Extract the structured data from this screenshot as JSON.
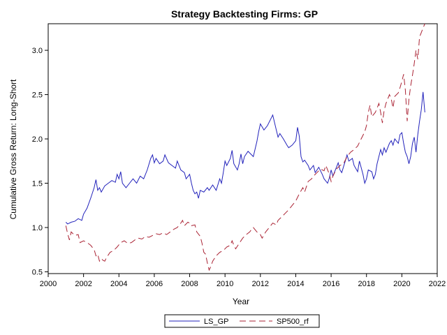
{
  "chart_data": {
    "type": "line",
    "title": "Strategy Backtesting  Firms: GP",
    "xlabel": "Year",
    "ylabel": "Cumulative Gross Return: Long-Short",
    "xlim": [
      2000,
      2022
    ],
    "ylim": [
      0.48,
      3.3
    ],
    "xticks": [
      2000,
      2002,
      2004,
      2006,
      2008,
      2010,
      2012,
      2014,
      2016,
      2018,
      2020,
      2022
    ],
    "yticks": [
      0.5,
      1.0,
      1.5,
      2.0,
      2.5,
      3.0
    ],
    "ytick_labels": [
      "0.5",
      "1.0",
      "1.5",
      "2.0",
      "2.5",
      "3.0"
    ],
    "grid": false,
    "legend": "bottom",
    "series": [
      {
        "name": "LS_GP",
        "color": "#2222bb",
        "style": "solid",
        "points": [
          [
            2001.0,
            1.06
          ],
          [
            2001.1,
            1.04
          ],
          [
            2001.3,
            1.06
          ],
          [
            2001.5,
            1.07
          ],
          [
            2001.7,
            1.1
          ],
          [
            2001.9,
            1.08
          ],
          [
            2002.0,
            1.15
          ],
          [
            2002.2,
            1.22
          ],
          [
            2002.4,
            1.33
          ],
          [
            2002.6,
            1.45
          ],
          [
            2002.7,
            1.54
          ],
          [
            2002.8,
            1.42
          ],
          [
            2002.9,
            1.45
          ],
          [
            2003.0,
            1.4
          ],
          [
            2003.2,
            1.47
          ],
          [
            2003.4,
            1.5
          ],
          [
            2003.6,
            1.53
          ],
          [
            2003.8,
            1.51
          ],
          [
            2003.9,
            1.6
          ],
          [
            2004.0,
            1.55
          ],
          [
            2004.1,
            1.63
          ],
          [
            2004.2,
            1.5
          ],
          [
            2004.4,
            1.45
          ],
          [
            2004.6,
            1.5
          ],
          [
            2004.8,
            1.55
          ],
          [
            2005.0,
            1.5
          ],
          [
            2005.2,
            1.58
          ],
          [
            2005.4,
            1.55
          ],
          [
            2005.6,
            1.65
          ],
          [
            2005.8,
            1.78
          ],
          [
            2005.9,
            1.82
          ],
          [
            2006.0,
            1.73
          ],
          [
            2006.1,
            1.78
          ],
          [
            2006.3,
            1.72
          ],
          [
            2006.5,
            1.75
          ],
          [
            2006.6,
            1.82
          ],
          [
            2006.8,
            1.73
          ],
          [
            2007.0,
            1.7
          ],
          [
            2007.2,
            1.67
          ],
          [
            2007.3,
            1.75
          ],
          [
            2007.5,
            1.65
          ],
          [
            2007.7,
            1.62
          ],
          [
            2007.8,
            1.55
          ],
          [
            2008.0,
            1.6
          ],
          [
            2008.1,
            1.5
          ],
          [
            2008.2,
            1.42
          ],
          [
            2008.3,
            1.38
          ],
          [
            2008.4,
            1.4
          ],
          [
            2008.5,
            1.33
          ],
          [
            2008.6,
            1.42
          ],
          [
            2008.8,
            1.4
          ],
          [
            2009.0,
            1.45
          ],
          [
            2009.1,
            1.42
          ],
          [
            2009.3,
            1.48
          ],
          [
            2009.5,
            1.42
          ],
          [
            2009.7,
            1.55
          ],
          [
            2009.8,
            1.5
          ],
          [
            2009.9,
            1.62
          ],
          [
            2010.0,
            1.75
          ],
          [
            2010.1,
            1.7
          ],
          [
            2010.3,
            1.78
          ],
          [
            2010.4,
            1.87
          ],
          [
            2010.5,
            1.72
          ],
          [
            2010.7,
            1.65
          ],
          [
            2010.8,
            1.72
          ],
          [
            2010.9,
            1.83
          ],
          [
            2011.0,
            1.72
          ],
          [
            2011.1,
            1.8
          ],
          [
            2011.3,
            1.86
          ],
          [
            2011.5,
            1.82
          ],
          [
            2011.6,
            1.8
          ],
          [
            2011.8,
            1.97
          ],
          [
            2011.9,
            2.08
          ],
          [
            2012.0,
            2.17
          ],
          [
            2012.2,
            2.1
          ],
          [
            2012.4,
            2.15
          ],
          [
            2012.6,
            2.23
          ],
          [
            2012.7,
            2.27
          ],
          [
            2012.9,
            2.1
          ],
          [
            2013.0,
            2.02
          ],
          [
            2013.1,
            2.06
          ],
          [
            2013.3,
            2.0
          ],
          [
            2013.5,
            1.93
          ],
          [
            2013.6,
            1.9
          ],
          [
            2013.8,
            1.93
          ],
          [
            2014.0,
            1.98
          ],
          [
            2014.1,
            2.13
          ],
          [
            2014.2,
            2.03
          ],
          [
            2014.3,
            1.8
          ],
          [
            2014.4,
            1.74
          ],
          [
            2014.5,
            1.76
          ],
          [
            2014.7,
            1.7
          ],
          [
            2014.8,
            1.65
          ],
          [
            2015.0,
            1.7
          ],
          [
            2015.1,
            1.62
          ],
          [
            2015.3,
            1.68
          ],
          [
            2015.5,
            1.6
          ],
          [
            2015.6,
            1.55
          ],
          [
            2015.8,
            1.5
          ],
          [
            2015.9,
            1.56
          ],
          [
            2016.0,
            1.65
          ],
          [
            2016.1,
            1.58
          ],
          [
            2016.3,
            1.68
          ],
          [
            2016.4,
            1.73
          ],
          [
            2016.5,
            1.65
          ],
          [
            2016.6,
            1.62
          ],
          [
            2016.8,
            1.75
          ],
          [
            2016.9,
            1.82
          ],
          [
            2017.0,
            1.75
          ],
          [
            2017.2,
            1.78
          ],
          [
            2017.3,
            1.7
          ],
          [
            2017.5,
            1.63
          ],
          [
            2017.6,
            1.75
          ],
          [
            2017.8,
            1.6
          ],
          [
            2017.9,
            1.5
          ],
          [
            2018.0,
            1.55
          ],
          [
            2018.1,
            1.65
          ],
          [
            2018.3,
            1.63
          ],
          [
            2018.4,
            1.55
          ],
          [
            2018.5,
            1.6
          ],
          [
            2018.6,
            1.72
          ],
          [
            2018.8,
            1.88
          ],
          [
            2018.9,
            1.82
          ],
          [
            2019.0,
            1.9
          ],
          [
            2019.1,
            1.85
          ],
          [
            2019.3,
            1.95
          ],
          [
            2019.4,
            1.98
          ],
          [
            2019.5,
            1.93
          ],
          [
            2019.6,
            2.0
          ],
          [
            2019.8,
            1.95
          ],
          [
            2019.9,
            2.05
          ],
          [
            2020.0,
            2.07
          ],
          [
            2020.1,
            1.95
          ],
          [
            2020.2,
            1.85
          ],
          [
            2020.3,
            1.8
          ],
          [
            2020.4,
            1.72
          ],
          [
            2020.5,
            1.8
          ],
          [
            2020.6,
            1.95
          ],
          [
            2020.7,
            2.02
          ],
          [
            2020.8,
            1.85
          ],
          [
            2020.9,
            2.05
          ],
          [
            2021.0,
            2.2
          ],
          [
            2021.1,
            2.33
          ],
          [
            2021.2,
            2.53
          ],
          [
            2021.3,
            2.3
          ]
        ]
      },
      {
        "name": "SP500_rf",
        "color": "#aa2233",
        "style": "dashed",
        "points": [
          [
            2001.0,
            1.02
          ],
          [
            2001.1,
            0.93
          ],
          [
            2001.2,
            0.86
          ],
          [
            2001.3,
            0.95
          ],
          [
            2001.5,
            0.91
          ],
          [
            2001.7,
            0.92
          ],
          [
            2001.8,
            0.83
          ],
          [
            2002.0,
            0.85
          ],
          [
            2002.2,
            0.83
          ],
          [
            2002.4,
            0.8
          ],
          [
            2002.6,
            0.75
          ],
          [
            2002.7,
            0.68
          ],
          [
            2002.8,
            0.7
          ],
          [
            2002.9,
            0.62
          ],
          [
            2003.0,
            0.65
          ],
          [
            2003.1,
            0.63
          ],
          [
            2003.2,
            0.62
          ],
          [
            2003.3,
            0.66
          ],
          [
            2003.5,
            0.72
          ],
          [
            2003.7,
            0.74
          ],
          [
            2003.9,
            0.78
          ],
          [
            2004.1,
            0.83
          ],
          [
            2004.3,
            0.85
          ],
          [
            2004.5,
            0.82
          ],
          [
            2004.7,
            0.83
          ],
          [
            2004.9,
            0.86
          ],
          [
            2005.1,
            0.88
          ],
          [
            2005.3,
            0.87
          ],
          [
            2005.5,
            0.9
          ],
          [
            2005.7,
            0.89
          ],
          [
            2005.9,
            0.91
          ],
          [
            2006.1,
            0.93
          ],
          [
            2006.3,
            0.92
          ],
          [
            2006.5,
            0.94
          ],
          [
            2006.7,
            0.92
          ],
          [
            2006.9,
            0.95
          ],
          [
            2007.1,
            0.98
          ],
          [
            2007.3,
            1.0
          ],
          [
            2007.5,
            1.05
          ],
          [
            2007.6,
            1.08
          ],
          [
            2007.7,
            1.02
          ],
          [
            2007.9,
            1.06
          ],
          [
            2008.0,
            1.05
          ],
          [
            2008.1,
            1.02
          ],
          [
            2008.3,
            1.03
          ],
          [
            2008.4,
            0.95
          ],
          [
            2008.6,
            0.9
          ],
          [
            2008.7,
            0.82
          ],
          [
            2008.8,
            0.72
          ],
          [
            2008.9,
            0.7
          ],
          [
            2009.0,
            0.6
          ],
          [
            2009.1,
            0.52
          ],
          [
            2009.2,
            0.56
          ],
          [
            2009.3,
            0.62
          ],
          [
            2009.5,
            0.68
          ],
          [
            2009.7,
            0.72
          ],
          [
            2009.9,
            0.74
          ],
          [
            2010.1,
            0.78
          ],
          [
            2010.3,
            0.8
          ],
          [
            2010.4,
            0.85
          ],
          [
            2010.5,
            0.8
          ],
          [
            2010.6,
            0.76
          ],
          [
            2010.8,
            0.82
          ],
          [
            2011.0,
            0.88
          ],
          [
            2011.2,
            0.92
          ],
          [
            2011.4,
            0.95
          ],
          [
            2011.5,
            0.98
          ],
          [
            2011.6,
            1.0
          ],
          [
            2011.8,
            0.95
          ],
          [
            2012.0,
            0.92
          ],
          [
            2012.1,
            0.88
          ],
          [
            2012.3,
            0.95
          ],
          [
            2012.5,
            1.0
          ],
          [
            2012.7,
            1.05
          ],
          [
            2012.9,
            1.03
          ],
          [
            2013.0,
            1.08
          ],
          [
            2013.2,
            1.12
          ],
          [
            2013.4,
            1.16
          ],
          [
            2013.6,
            1.2
          ],
          [
            2013.8,
            1.25
          ],
          [
            2014.0,
            1.3
          ],
          [
            2014.2,
            1.38
          ],
          [
            2014.4,
            1.45
          ],
          [
            2014.5,
            1.4
          ],
          [
            2014.7,
            1.52
          ],
          [
            2014.9,
            1.55
          ],
          [
            2015.0,
            1.58
          ],
          [
            2015.2,
            1.62
          ],
          [
            2015.4,
            1.66
          ],
          [
            2015.6,
            1.64
          ],
          [
            2015.7,
            1.7
          ],
          [
            2015.9,
            1.6
          ],
          [
            2016.0,
            1.52
          ],
          [
            2016.1,
            1.58
          ],
          [
            2016.3,
            1.66
          ],
          [
            2016.5,
            1.7
          ],
          [
            2016.7,
            1.72
          ],
          [
            2016.9,
            1.8
          ],
          [
            2017.1,
            1.85
          ],
          [
            2017.3,
            1.88
          ],
          [
            2017.5,
            1.92
          ],
          [
            2017.7,
            2.0
          ],
          [
            2017.9,
            2.08
          ],
          [
            2018.0,
            2.15
          ],
          [
            2018.1,
            2.3
          ],
          [
            2018.2,
            2.38
          ],
          [
            2018.3,
            2.25
          ],
          [
            2018.5,
            2.3
          ],
          [
            2018.7,
            2.4
          ],
          [
            2018.8,
            2.3
          ],
          [
            2018.9,
            2.18
          ],
          [
            2019.0,
            2.32
          ],
          [
            2019.1,
            2.4
          ],
          [
            2019.3,
            2.5
          ],
          [
            2019.4,
            2.45
          ],
          [
            2019.5,
            2.35
          ],
          [
            2019.6,
            2.48
          ],
          [
            2019.8,
            2.52
          ],
          [
            2019.9,
            2.58
          ],
          [
            2020.0,
            2.65
          ],
          [
            2020.1,
            2.73
          ],
          [
            2020.2,
            2.55
          ],
          [
            2020.3,
            2.2
          ],
          [
            2020.4,
            2.45
          ],
          [
            2020.5,
            2.6
          ],
          [
            2020.6,
            2.72
          ],
          [
            2020.7,
            2.85
          ],
          [
            2020.8,
            3.0
          ],
          [
            2020.9,
            2.9
          ],
          [
            2021.0,
            3.15
          ],
          [
            2021.1,
            3.2
          ],
          [
            2021.2,
            3.25
          ],
          [
            2021.3,
            3.3
          ]
        ]
      }
    ]
  }
}
